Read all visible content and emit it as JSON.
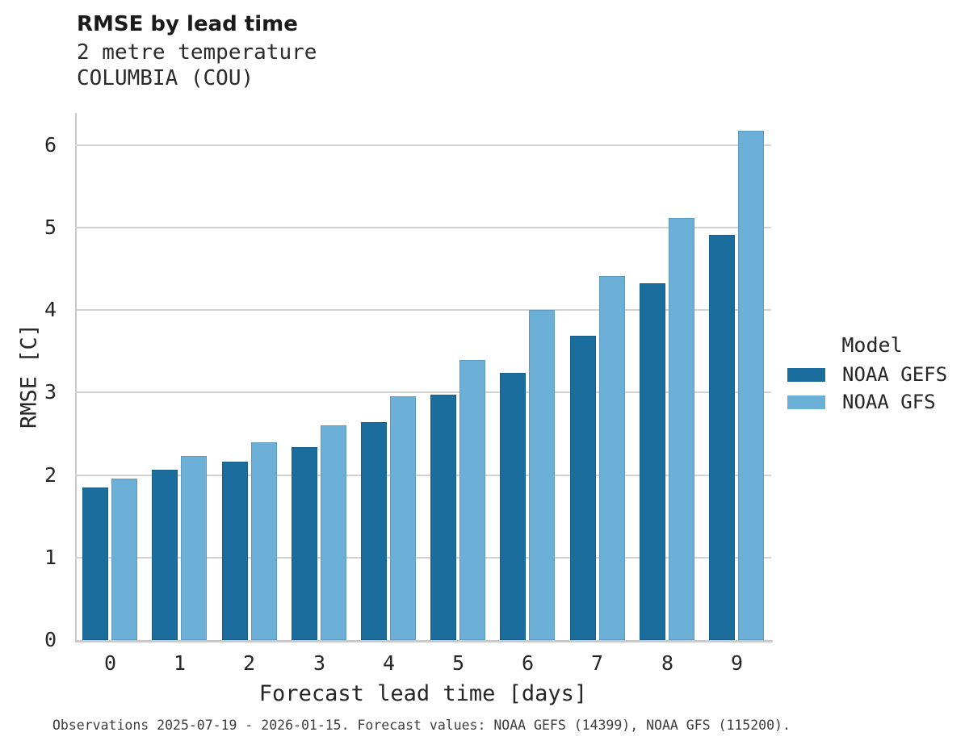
{
  "header": {
    "title": "RMSE by lead time",
    "subtitle_variable": "2 metre temperature",
    "subtitle_station": "COLUMBIA (COU)"
  },
  "chart_data": {
    "type": "bar",
    "title": "RMSE by lead time",
    "subtitle": "2 metre temperature",
    "station": "COLUMBIA (COU)",
    "categories": [
      "0",
      "1",
      "2",
      "3",
      "4",
      "5",
      "6",
      "7",
      "8",
      "9"
    ],
    "series": [
      {
        "name": "NOAA GEFS",
        "color": "#1b6d9e",
        "values": [
          1.85,
          2.06,
          2.16,
          2.34,
          2.64,
          2.97,
          3.24,
          3.69,
          4.33,
          4.91
        ]
      },
      {
        "name": "NOAA GFS",
        "color": "#6cb0d8",
        "values": [
          1.96,
          2.23,
          2.4,
          2.6,
          2.96,
          3.4,
          4.0,
          4.41,
          5.12,
          6.17
        ]
      }
    ],
    "xlabel": "Forecast lead time [days]",
    "ylabel": "RMSE [C]",
    "ylim": [
      0,
      6.39
    ],
    "yticks": [
      0,
      1,
      2,
      3,
      4,
      5,
      6
    ],
    "grid": "horizontal",
    "legend_title": "Model",
    "legend_position": "right"
  },
  "colors": {
    "gefs_dark_blue": "#1b6d9e",
    "gfs_light_blue": "#6cb0d8",
    "gridline": "#d2d2d2",
    "spine": "#c9c9c9",
    "text": "#262626"
  },
  "footer": {
    "text": "Observations 2025-07-19 - 2026-01-15. Forecast values: NOAA GEFS (14399), NOAA GFS (115200)."
  }
}
